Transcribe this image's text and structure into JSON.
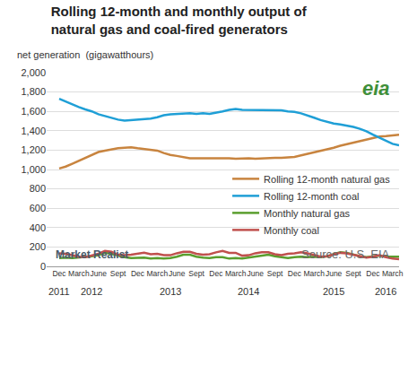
{
  "chart_data": {
    "type": "line",
    "title": "Rolling 12-month and monthly output of\nnatural gas and coal-fired generators",
    "subtitle": "net generation  (gigawatthours)",
    "logo": "eia",
    "credit": "Market Realist",
    "source": "Source: U.S. EIA",
    "categories": [
      "Dec",
      null,
      null,
      "March",
      null,
      null,
      "June",
      null,
      null,
      "Sept",
      null,
      null,
      "Dec",
      null,
      null,
      "March",
      null,
      null,
      "June",
      null,
      null,
      "Sept",
      null,
      null,
      "Dec",
      null,
      null,
      "March",
      null,
      null,
      "June",
      null,
      null,
      "Sept",
      null,
      null,
      "Dec",
      null,
      null,
      "March",
      null,
      null,
      "June",
      null,
      null,
      "Sept",
      null,
      null,
      "Dec",
      null,
      null,
      "March",
      null
    ],
    "annotations": [
      {
        "text": "2011",
        "x": 0
      },
      {
        "text": "2012",
        "x": 5
      },
      {
        "text": "2013",
        "x": 17
      },
      {
        "text": "2014",
        "x": 29
      },
      {
        "text": "2015",
        "x": 42
      },
      {
        "text": "2016",
        "x": 50
      }
    ],
    "series": [
      {
        "name": "Rolling 12-month natural gas",
        "color": "#c8843f",
        "values": [
          1010,
          1030,
          1060,
          1090,
          1120,
          1150,
          1180,
          1195,
          1210,
          1220,
          1225,
          1230,
          1220,
          1210,
          1205,
          1195,
          1170,
          1150,
          1140,
          1125,
          1115,
          1115,
          1115,
          1120,
          1120,
          1120,
          1115,
          1110,
          1115,
          1115,
          1110,
          1115,
          1120,
          1120,
          1120,
          1125,
          1130,
          1145,
          1160,
          1175,
          1190,
          1205,
          1225,
          1245,
          1260,
          1280,
          1295,
          1310,
          1325,
          1340,
          1345,
          1350,
          1360
        ]
      },
      {
        "name": "Rolling 12-month coal",
        "color": "#1f9fd6",
        "values": [
          1730,
          1700,
          1670,
          1645,
          1620,
          1600,
          1570,
          1550,
          1530,
          1515,
          1505,
          1510,
          1510,
          1515,
          1525,
          1540,
          1560,
          1570,
          1575,
          1575,
          1580,
          1575,
          1580,
          1575,
          1585,
          1600,
          1615,
          1625,
          1615,
          1615,
          1615,
          1615,
          1615,
          1615,
          1610,
          1600,
          1595,
          1580,
          1560,
          1535,
          1510,
          1490,
          1475,
          1465,
          1455,
          1440,
          1420,
          1395,
          1360,
          1330,
          1300,
          1265,
          1250
        ]
      },
      {
        "name": "Monthly natural gas",
        "color": "#5a9e2e",
        "values": [
          85,
          90,
          85,
          90,
          95,
          105,
          115,
          140,
          130,
          110,
          95,
          85,
          85,
          90,
          80,
          85,
          80,
          85,
          100,
          120,
          120,
          100,
          90,
          85,
          95,
          95,
          80,
          85,
          80,
          90,
          100,
          115,
          120,
          105,
          95,
          85,
          95,
          100,
          95,
          100,
          95,
          105,
          125,
          145,
          140,
          120,
          105,
          95,
          105,
          110,
          100,
          100,
          100
        ]
      },
      {
        "name": "Monthly coal",
        "color": "#c0504d",
        "values": [
          135,
          130,
          115,
          100,
          95,
          110,
          130,
          160,
          150,
          120,
          115,
          120,
          130,
          140,
          125,
          130,
          115,
          115,
          135,
          150,
          150,
          130,
          120,
          125,
          145,
          160,
          140,
          140,
          110,
          115,
          135,
          145,
          145,
          125,
          115,
          130,
          135,
          145,
          135,
          120,
          100,
          105,
          125,
          140,
          135,
          120,
          100,
          90,
          100,
          115,
          95,
          80,
          75
        ]
      }
    ],
    "ylim": [
      0,
      2000
    ],
    "yticks": [
      0,
      200,
      400,
      600,
      800,
      {
        "value": 1000,
        "label": "1,000"
      },
      {
        "value": 1200,
        "label": "1,200"
      },
      {
        "value": 1400,
        "label": "1,400"
      },
      {
        "value": 1600,
        "label": "1,600"
      },
      {
        "value": 1800,
        "label": "1,800"
      },
      {
        "value": 2000,
        "label": "2,000"
      }
    ],
    "grid": true,
    "legend": "right"
  }
}
